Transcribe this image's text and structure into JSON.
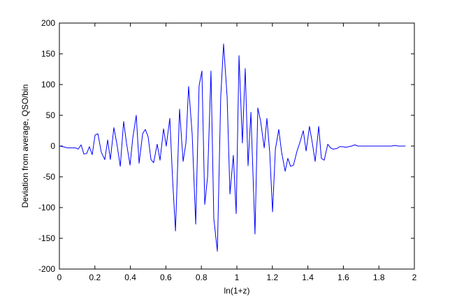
{
  "chart_data": {
    "type": "line",
    "xlabel": "ln(1+z)",
    "ylabel": "Deviation from average,  QSO/bin",
    "x": [
      0,
      0.02,
      0.047,
      0.071,
      0.091,
      0.106,
      0.122,
      0.138,
      0.154,
      0.169,
      0.185,
      0.201,
      0.217,
      0.236,
      0.256,
      0.272,
      0.287,
      0.307,
      0.323,
      0.343,
      0.362,
      0.378,
      0.398,
      0.413,
      0.433,
      0.449,
      0.469,
      0.484,
      0.5,
      0.516,
      0.531,
      0.551,
      0.567,
      0.587,
      0.602,
      0.622,
      0.638,
      0.654,
      0.677,
      0.697,
      0.713,
      0.728,
      0.748,
      0.768,
      0.787,
      0.803,
      0.819,
      0.835,
      0.854,
      0.87,
      0.89,
      0.909,
      0.925,
      0.945,
      0.961,
      0.98,
      0.996,
      1.012,
      1.031,
      1.047,
      1.063,
      1.079,
      1.102,
      1.118,
      1.134,
      1.154,
      1.169,
      1.185,
      1.201,
      1.217,
      1.236,
      1.252,
      1.272,
      1.287,
      1.303,
      1.319,
      1.339,
      1.354,
      1.374,
      1.39,
      1.409,
      1.425,
      1.441,
      1.461,
      1.476,
      1.492,
      1.512,
      1.528,
      1.543,
      1.563,
      1.579,
      1.594,
      1.614,
      1.63,
      1.646,
      1.665,
      1.681,
      1.697,
      1.72,
      1.75,
      1.78,
      1.8,
      1.83,
      1.85,
      1.87,
      1.89,
      1.91,
      1.93,
      1.95
    ],
    "series": [
      {
        "name": "deviation",
        "color": "#0000ff",
        "values": [
          0,
          -1,
          -3,
          -3,
          -3,
          -5,
          2,
          -13,
          -12,
          -1,
          -14,
          18,
          20,
          -10,
          -22,
          10,
          -22,
          30,
          5,
          -33,
          40,
          5,
          -31,
          12,
          50,
          -28,
          20,
          27,
          15,
          -22,
          -27,
          3,
          -23,
          28,
          0,
          45,
          -55,
          -138,
          60,
          -25,
          5,
          97,
          20,
          -127,
          98,
          122,
          -95,
          -50,
          122,
          -118,
          -171,
          80,
          166,
          80,
          -78,
          -15,
          -110,
          147,
          5,
          126,
          -32,
          55,
          -143,
          62,
          40,
          -3,
          45,
          -10,
          -107,
          -5,
          27,
          -10,
          -41,
          -20,
          -33,
          -31,
          -8,
          5,
          25,
          -8,
          32,
          5,
          -25,
          32,
          -20,
          -23,
          3,
          -3,
          -5,
          -4,
          -1,
          -1,
          -2,
          -1,
          0,
          2,
          0,
          0,
          0,
          0,
          0,
          0,
          0,
          0,
          0,
          1,
          0,
          0,
          0
        ]
      }
    ],
    "xlim": [
      0,
      2
    ],
    "xticks": [
      0,
      0.2,
      0.4,
      0.6,
      0.8,
      1,
      1.2,
      1.4,
      1.6,
      1.8,
      2
    ],
    "ylim": [
      -200,
      200
    ],
    "yticks": [
      -200,
      -150,
      -100,
      -50,
      0,
      50,
      100,
      150,
      200
    ],
    "grid": false
  }
}
